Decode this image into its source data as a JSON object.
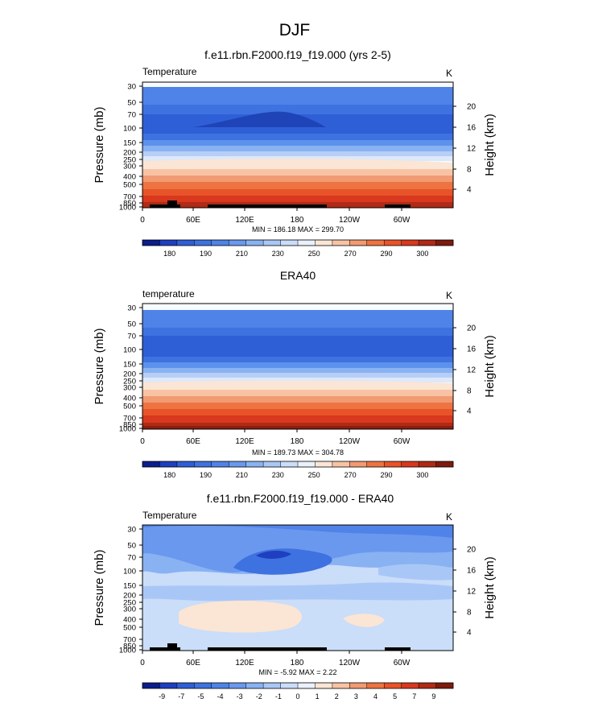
{
  "page_title": "DJF",
  "chart_data": [
    {
      "type": "heatmap",
      "title": "f.e11.rbn.F2000.f19_f19.000 (yrs 2-5)",
      "variable_label": "Temperature",
      "units": "K",
      "ylabel": "Pressure (mb)",
      "ylabel_right": "Height (km)",
      "pressure_ticks": [
        "30",
        "50",
        "70",
        "100",
        "150",
        "200",
        "250",
        "300",
        "400",
        "500",
        "700",
        "850",
        "1000"
      ],
      "height_ticks": [
        "20",
        "16",
        "12",
        "8",
        "4"
      ],
      "x_ticks": [
        "0",
        "60E",
        "120E",
        "180",
        "120W",
        "60W"
      ],
      "min_max_text": "MIN = 186.18  MAX = 299.70",
      "colorbar_labels": [
        "180",
        "190",
        "210",
        "230",
        "250",
        "270",
        "290",
        "300"
      ],
      "layer_colors": [
        "#F7FAFE",
        "#4F83E8",
        "#3E72E0",
        "#2F5FD6",
        "#2F5FD6",
        "#5C92EC",
        "#89B2F2",
        "#B7CFF6",
        "#DDE8FA",
        "#FBE5D4",
        "#F8C3A4",
        "#F29A72",
        "#EE7342",
        "#E8532A",
        "#D8381D",
        "#B02A16"
      ],
      "features": [
        "cold-minimum-180E-tropopause",
        "topography-black"
      ]
    },
    {
      "type": "heatmap",
      "title": "ERA40",
      "variable_label": "temperature",
      "units": "K",
      "ylabel": "Pressure (mb)",
      "ylabel_right": "Height (km)",
      "pressure_ticks": [
        "30",
        "50",
        "70",
        "100",
        "150",
        "200",
        "250",
        "300",
        "400",
        "500",
        "700",
        "850",
        "1000"
      ],
      "height_ticks": [
        "20",
        "16",
        "12",
        "8",
        "4"
      ],
      "x_ticks": [
        "0",
        "60E",
        "120E",
        "180",
        "120W",
        "60W"
      ],
      "min_max_text": "MIN = 189.73  MAX = 304.78",
      "colorbar_labels": [
        "180",
        "190",
        "210",
        "230",
        "250",
        "270",
        "290",
        "300"
      ],
      "layer_colors": [
        "#F7FAFE",
        "#4F83E8",
        "#3E72E0",
        "#2F5FD6",
        "#2F5FD6",
        "#5C92EC",
        "#89B2F2",
        "#B7CFF6",
        "#DDE8FA",
        "#FBE5D4",
        "#F8C3A4",
        "#F29A72",
        "#EE7342",
        "#E8532A",
        "#D8381D",
        "#B02A16"
      ],
      "features": []
    },
    {
      "type": "heatmap",
      "title": "f.e11.rbn.F2000.f19_f19.000 - ERA40",
      "variable_label": "Temperature",
      "units": "K",
      "ylabel": "Pressure (mb)",
      "ylabel_right": "Height (km)",
      "pressure_ticks": [
        "30",
        "50",
        "70",
        "100",
        "150",
        "200",
        "250",
        "300",
        "400",
        "500",
        "700",
        "850",
        "1000"
      ],
      "height_ticks": [
        "20",
        "16",
        "12",
        "8",
        "4"
      ],
      "x_ticks": [
        "0",
        "60E",
        "120E",
        "180",
        "120W",
        "60W"
      ],
      "min_max_text": "MIN =  -5.92  MAX =   2.22",
      "colorbar_labels": [
        "-9",
        "-7",
        "-5",
        "-4",
        "-3",
        "-2",
        "-1",
        "0",
        "1",
        "2",
        "3",
        "4",
        "5",
        "7",
        "9"
      ],
      "features": [
        "difference-field",
        "topography-black"
      ]
    }
  ],
  "colorbar_colors_main": [
    "#0A1E8C",
    "#1F3FC0",
    "#2F5FD6",
    "#3E72E0",
    "#4F83E8",
    "#6A98EE",
    "#89B2F2",
    "#A9C7F6",
    "#CADDF9",
    "#EAF1FC",
    "#FBE5D4",
    "#F8C3A4",
    "#F29A72",
    "#EE7342",
    "#E8532A",
    "#D8381D",
    "#B02A16",
    "#7E1A0E"
  ],
  "colorbar_colors_diff": [
    "#0A1E8C",
    "#1F3FC0",
    "#2F5FD6",
    "#3E72E0",
    "#4F83E8",
    "#6A98EE",
    "#89B2F2",
    "#A9C7F6",
    "#CADDF9",
    "#EAF1FC",
    "#FBE5D4",
    "#F8C3A4",
    "#F29A72",
    "#EE7342",
    "#E8532A",
    "#D8381D",
    "#B02A16",
    "#7E1A0E"
  ]
}
